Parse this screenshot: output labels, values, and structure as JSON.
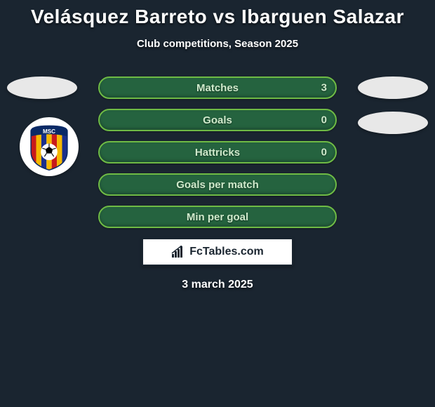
{
  "title": "Velásquez Barreto vs Ibarguen Salazar",
  "subtitle": "Club competitions, Season 2025",
  "date": "3 march 2025",
  "colors": {
    "background": "#1a2530",
    "placeholder": "#e8e8e8",
    "text": "#ffffff",
    "row_bg": "#25633f",
    "row_border": "#6fbb45",
    "row_text": "#cfeacb",
    "logo_box_bg": "#ffffff",
    "logo_box_text": "#1a2530"
  },
  "stats": [
    {
      "label": "Matches",
      "value_right": "3"
    },
    {
      "label": "Goals",
      "value_right": "0"
    },
    {
      "label": "Hattricks",
      "value_right": "0"
    },
    {
      "label": "Goals per match",
      "value_right": ""
    },
    {
      "label": "Min per goal",
      "value_right": ""
    }
  ],
  "brand": "FcTables.com",
  "club_logo": {
    "name": "MSC",
    "stripes": [
      "#c81b1b",
      "#f5b800",
      "#1b2f8c",
      "#f5b800",
      "#c81b1b",
      "#f5b800",
      "#1b2f8c"
    ],
    "arc_bg": "#0a2a66",
    "arc_text": "#ffffff",
    "ball_bg": "#ffffff"
  }
}
